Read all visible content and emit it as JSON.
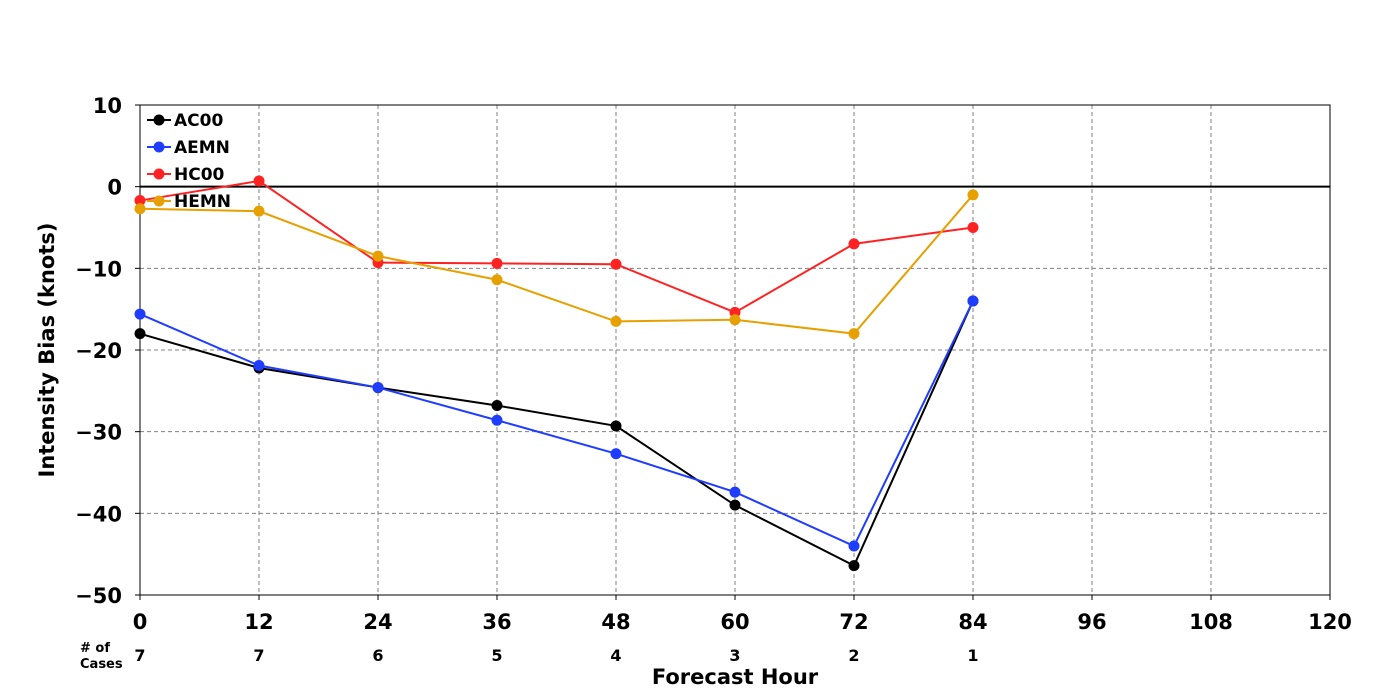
{
  "chart_data": {
    "type": "line",
    "title": "",
    "xlabel": "Forecast Hour",
    "ylabel": "Intensity Bias (knots)",
    "xlim": [
      0,
      120
    ],
    "ylim": [
      -50,
      10
    ],
    "xticks": [
      0,
      12,
      24,
      36,
      48,
      60,
      72,
      84,
      96,
      108,
      120
    ],
    "yticks": [
      10,
      0,
      -10,
      -20,
      -30,
      -40,
      -50
    ],
    "xtick_labels": [
      "0",
      "12",
      "24",
      "36",
      "48",
      "60",
      "72",
      "84",
      "96",
      "108",
      "120"
    ],
    "ytick_labels": [
      "10",
      "0",
      "−10",
      "−20",
      "−30",
      "−40",
      "−50"
    ],
    "grid": true,
    "zero_line": true,
    "legend_position": "top-left",
    "cases_title_line1": "# of",
    "cases_title_line2": "Cases",
    "cases": [
      {
        "x": 0,
        "label": "7"
      },
      {
        "x": 12,
        "label": "7"
      },
      {
        "x": 24,
        "label": "6"
      },
      {
        "x": 36,
        "label": "5"
      },
      {
        "x": 48,
        "label": "4"
      },
      {
        "x": 60,
        "label": "3"
      },
      {
        "x": 72,
        "label": "2"
      },
      {
        "x": 84,
        "label": "1"
      }
    ],
    "x": [
      0,
      12,
      24,
      36,
      48,
      60,
      72,
      84
    ],
    "series": [
      {
        "name": "AC00",
        "color": "#000000",
        "values": [
          -18.0,
          -22.2,
          -24.6,
          -26.8,
          -29.3,
          -39.0,
          -46.4,
          -14.0
        ]
      },
      {
        "name": "AEMN",
        "color": "#1f3dff",
        "values": [
          -15.6,
          -21.9,
          -24.6,
          -28.6,
          -32.7,
          -37.4,
          -44.0,
          -14.0
        ]
      },
      {
        "name": "HC00",
        "color": "#ff2222",
        "values": [
          -1.7,
          0.7,
          -9.3,
          -9.4,
          -9.5,
          -15.4,
          -7.0,
          -5.0
        ]
      },
      {
        "name": "HEMN",
        "color": "#e6a000",
        "values": [
          -2.7,
          -3.0,
          -8.5,
          -11.4,
          -16.5,
          -16.3,
          -18.0,
          -1.0
        ]
      }
    ]
  }
}
